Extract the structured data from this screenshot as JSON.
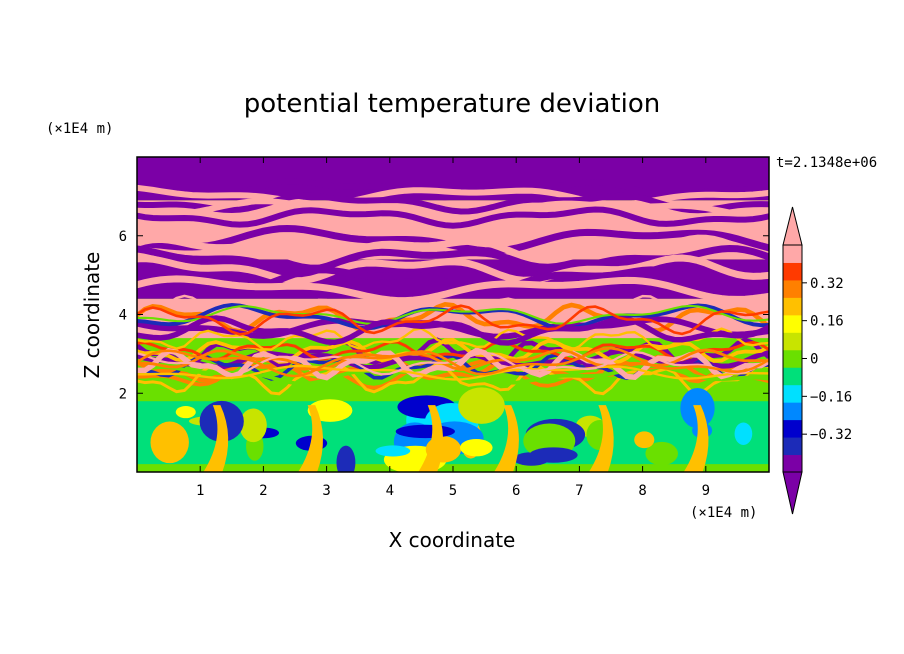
{
  "chart_data": {
    "type": "heatmap",
    "title": "potential temperature deviation",
    "xlabel": "X coordinate",
    "ylabel": "Z coordinate",
    "x_unit": "(×1E4 m)",
    "y_unit": "(×1E4 m)",
    "time_label": "t=2.1348e+06",
    "xlim": [
      0,
      10
    ],
    "ylim": [
      0,
      8
    ],
    "x_ticks": [
      "1",
      "2",
      "3",
      "4",
      "5",
      "6",
      "7",
      "8",
      "9"
    ],
    "y_ticks": [
      "2",
      "4",
      "6"
    ],
    "x_tick_values": [
      1,
      2,
      3,
      4,
      5,
      6,
      7,
      8,
      9
    ],
    "y_tick_values": [
      2,
      4,
      6
    ],
    "colorbar": {
      "levels": [
        -0.48,
        -0.4,
        -0.32,
        -0.24,
        -0.16,
        -0.08,
        0,
        0.08,
        0.16,
        0.24,
        0.32,
        0.4,
        0.48
      ],
      "tick_labels": [
        "0.32",
        "0.16",
        "0",
        "−0.16",
        "−0.32"
      ],
      "tick_values": [
        0.32,
        0.16,
        0,
        -0.16,
        -0.32
      ],
      "colors": [
        "#7b00a6",
        "#1c2bb8",
        "#0000cd",
        "#0088ff",
        "#00e0ff",
        "#00e07a",
        "#6ae000",
        "#c8e400",
        "#ffff00",
        "#ffc000",
        "#ff8000",
        "#ff3a00",
        "#ffa8a8"
      ],
      "extend": "both"
    },
    "bands": [
      {
        "z_range": [
          0.0,
          0.2
        ],
        "dominant_value": 0.0
      },
      {
        "z_range": [
          0.2,
          1.8
        ],
        "dominant_value": -0.08
      },
      {
        "z_range": [
          1.8,
          2.4
        ],
        "dominant_value": 0.0
      },
      {
        "z_range": [
          2.4,
          3.4
        ],
        "dominant_value": 0.0
      },
      {
        "z_range": [
          3.4,
          4.4
        ],
        "dominant_value": 0.48
      },
      {
        "z_range": [
          4.4,
          5.4
        ],
        "dominant_value": -0.48
      },
      {
        "z_range": [
          5.4,
          6.9
        ],
        "dominant_value": 0.48
      },
      {
        "z_range": [
          6.9,
          8.0
        ],
        "dominant_value": -0.48
      }
    ]
  }
}
